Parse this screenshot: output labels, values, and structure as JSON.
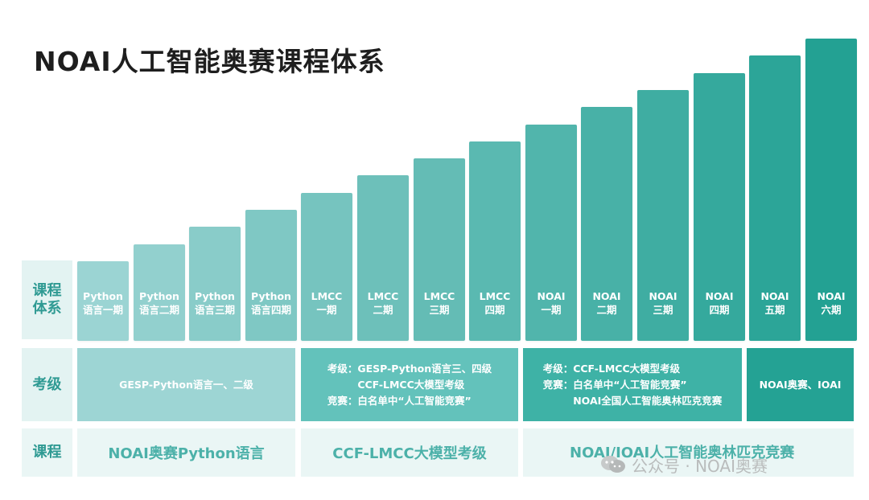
{
  "title": "NOAI人工智能奥赛课程体系",
  "row_headers": {
    "courses_system": [
      "课程",
      "体系"
    ],
    "exam_level": "考级",
    "course": "课程"
  },
  "bars": [
    {
      "line1": "Python",
      "line2": "语言一期",
      "level": 1
    },
    {
      "line1": "Python",
      "line2": "语言二期",
      "level": 2
    },
    {
      "line1": "Python",
      "line2": "语言三期",
      "level": 3
    },
    {
      "line1": "Python",
      "line2": "语言四期",
      "level": 4
    },
    {
      "line1": "LMCC",
      "line2": "一期",
      "level": 5
    },
    {
      "line1": "LMCC",
      "line2": "二期",
      "level": 6
    },
    {
      "line1": "LMCC",
      "line2": "三期",
      "level": 7
    },
    {
      "line1": "LMCC",
      "line2": "四期",
      "level": 8
    },
    {
      "line1": "NOAI",
      "line2": "一期",
      "level": 9
    },
    {
      "line1": "NOAI",
      "line2": "二期",
      "level": 10
    },
    {
      "line1": "NOAI",
      "line2": "三期",
      "level": 11
    },
    {
      "line1": "NOAI",
      "line2": "四期",
      "level": 12
    },
    {
      "line1": "NOAI",
      "line2": "五期",
      "level": 13
    },
    {
      "line1": "NOAI",
      "line2": "六期",
      "level": 14
    }
  ],
  "exam_blocks": [
    {
      "text": "GESP-Python语言一、二级"
    },
    {
      "lines": [
        "考级：GESP-Python语言三、四级",
        "　　　CCF-LMCC大模型考级",
        "竞赛：白名单中“人工智能竞赛”"
      ]
    },
    {
      "lines": [
        "考级：CCF-LMCC大模型考级",
        "竞赛：白名单中“人工智能竞赛”",
        "　　　NOAI全国人工智能奥林匹克竞赛"
      ]
    },
    {
      "text": "NOAI奥赛、IOAI"
    }
  ],
  "course_blocks": [
    "NOAI奥赛Python语言",
    "CCF-LMCC大模型考级",
    "NOAI/IOAI人工智能奥林匹克竞赛"
  ],
  "watermark": "公众号 · NOAI奥赛",
  "colors": {
    "bar_light": "#9bd4d3",
    "bar_dark": "#23a193",
    "header_bg": "#e3f3f2",
    "header_text": "#2f9a93",
    "course_bg": "#eaf6f5",
    "course_text": "#4cb1a9"
  }
}
